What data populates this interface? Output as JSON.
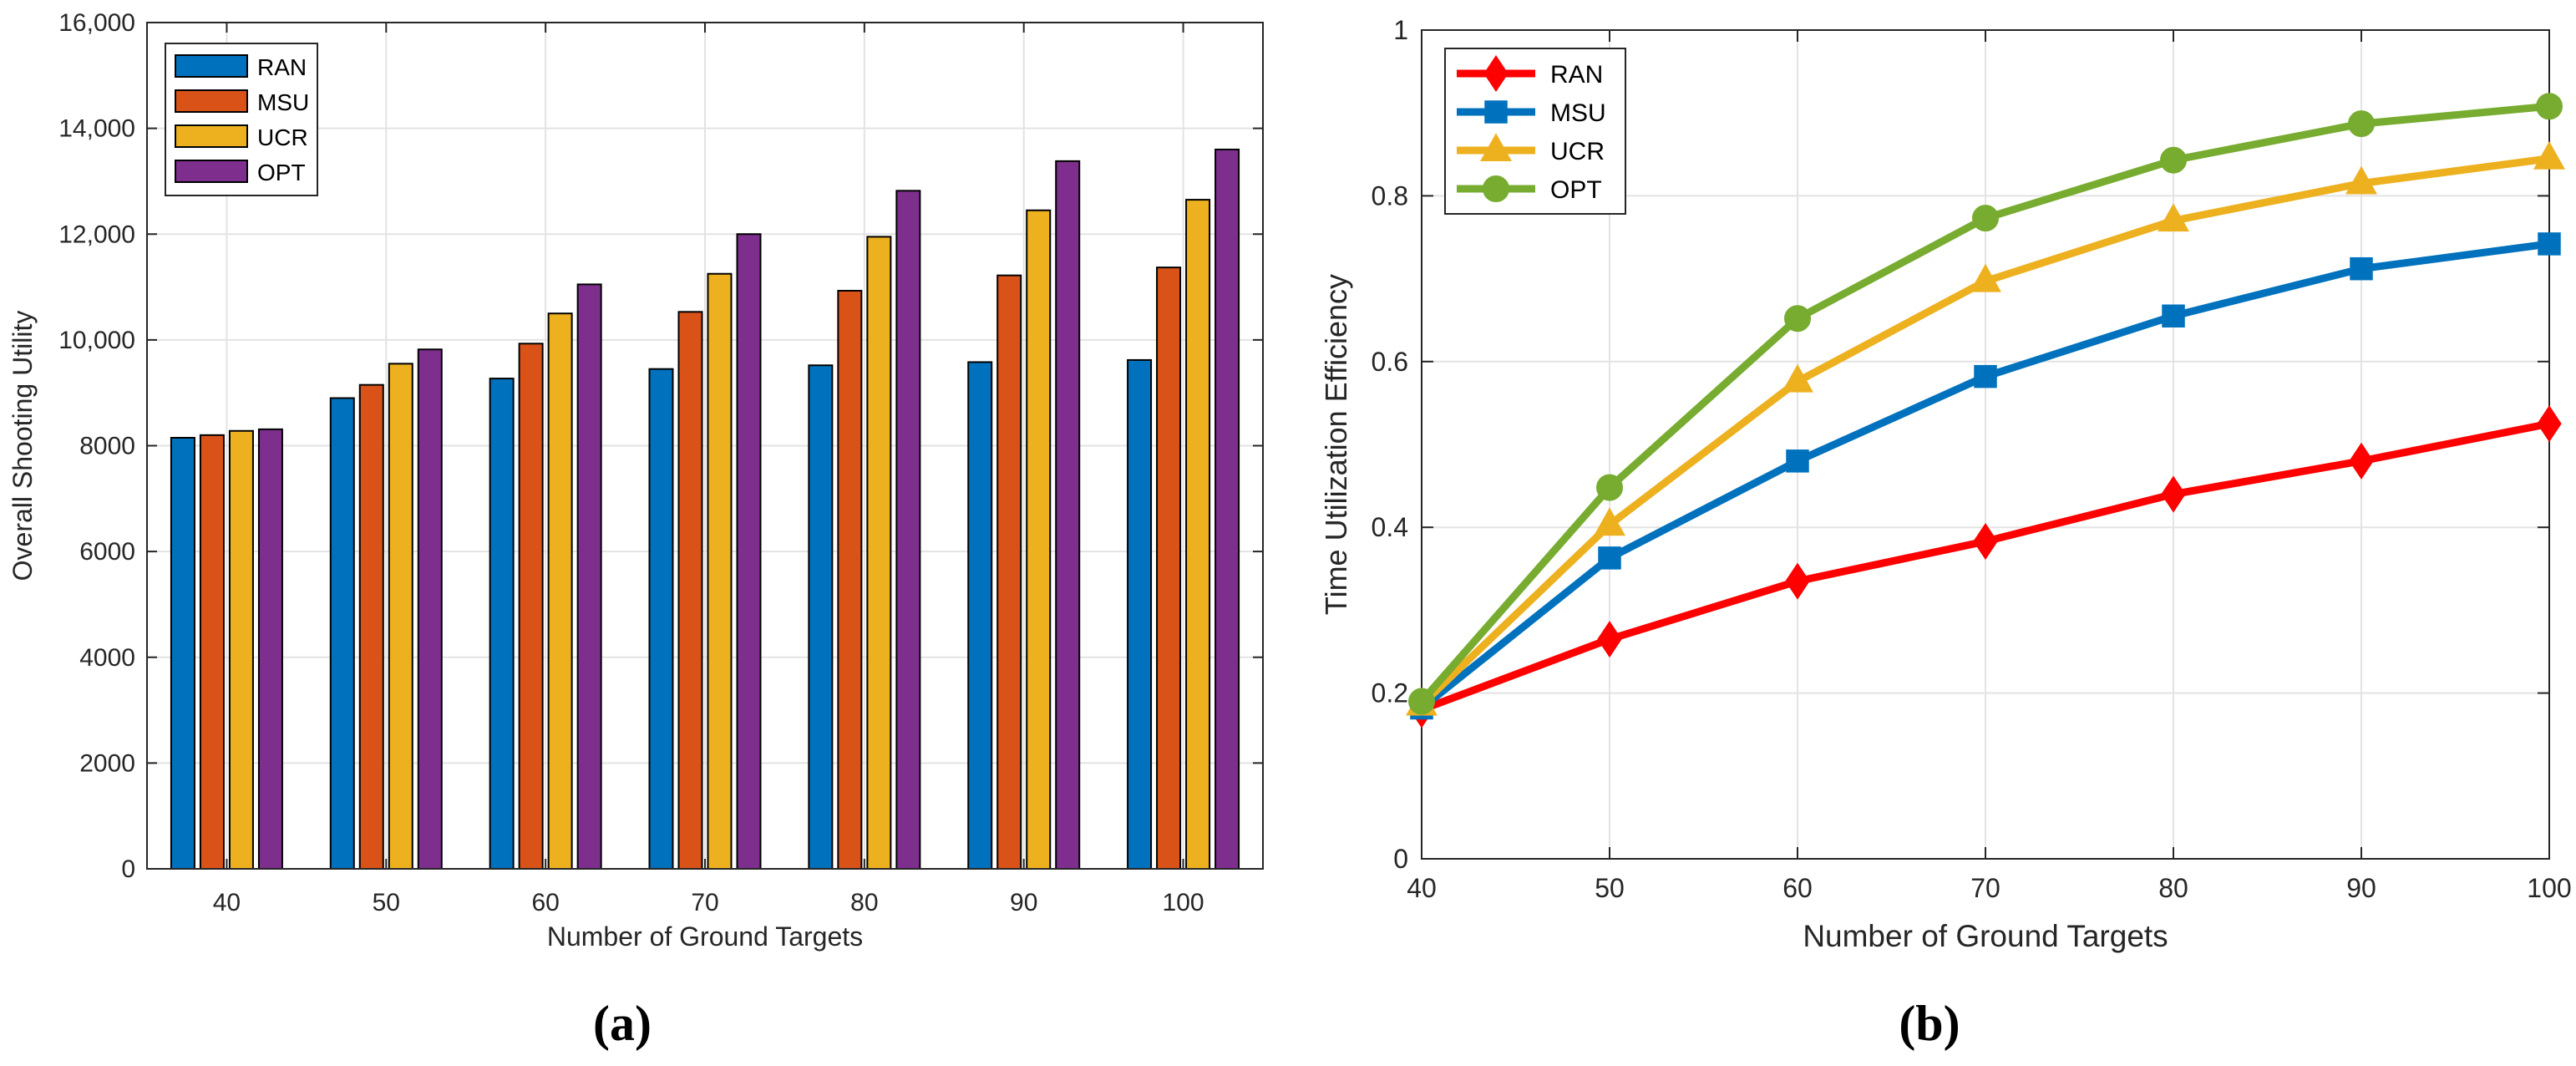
{
  "figure": {
    "caption_a": "(a)",
    "caption_b": "(b)"
  },
  "chart_data": [
    {
      "type": "bar",
      "xlabel": "Number of Ground Targets",
      "ylabel": "Overall Shooting Utility",
      "categories": [
        "40",
        "50",
        "60",
        "70",
        "80",
        "90",
        "100"
      ],
      "ylim": [
        0,
        16000
      ],
      "yticks": [
        0,
        2000,
        4000,
        6000,
        8000,
        10000,
        12000,
        14000,
        16000
      ],
      "ytick_labels": [
        "0",
        "2000",
        "4000",
        "6000",
        "8000",
        "10,000",
        "12,000",
        "14,000",
        "16,000"
      ],
      "grid": true,
      "legend_position": "top-left",
      "series": [
        {
          "name": "RAN",
          "color": "#0072BD",
          "values": [
            8150,
            8900,
            9270,
            9450,
            9520,
            9580,
            9620
          ]
        },
        {
          "name": "MSU",
          "color": "#D95319",
          "values": [
            8200,
            9150,
            9930,
            10530,
            10930,
            11220,
            11370
          ]
        },
        {
          "name": "UCR",
          "color": "#EDB120",
          "values": [
            8280,
            9550,
            10500,
            11250,
            11950,
            12450,
            12650
          ]
        },
        {
          "name": "OPT",
          "color": "#7E2F8E",
          "values": [
            8310,
            9820,
            11050,
            12000,
            12820,
            13380,
            13600
          ]
        }
      ]
    },
    {
      "type": "line",
      "xlabel": "Number of Ground Targets",
      "ylabel": "Time Utilization Efficiency",
      "x": [
        40,
        50,
        60,
        70,
        80,
        90,
        100
      ],
      "xlim": [
        40,
        100
      ],
      "ylim": [
        0,
        1
      ],
      "xticks": [
        "40",
        "50",
        "60",
        "70",
        "80",
        "90",
        "100"
      ],
      "yticks": [
        "0",
        "0.2",
        "0.4",
        "0.6",
        "0.8",
        "1"
      ],
      "grid": true,
      "legend_position": "top-left",
      "series": [
        {
          "name": "RAN",
          "color": "#FF0000",
          "marker": "diamond",
          "values": [
            0.18,
            0.265,
            0.335,
            0.383,
            0.44,
            0.48,
            0.525
          ]
        },
        {
          "name": "MSU",
          "color": "#0072BD",
          "marker": "square",
          "values": [
            0.182,
            0.363,
            0.48,
            0.582,
            0.655,
            0.712,
            0.742
          ]
        },
        {
          "name": "UCR",
          "color": "#EDB120",
          "marker": "triangle",
          "values": [
            0.186,
            0.403,
            0.576,
            0.697,
            0.77,
            0.815,
            0.845
          ]
        },
        {
          "name": "OPT",
          "color": "#77AC30",
          "marker": "circle",
          "values": [
            0.19,
            0.448,
            0.652,
            0.773,
            0.843,
            0.887,
            0.908
          ]
        }
      ]
    }
  ]
}
